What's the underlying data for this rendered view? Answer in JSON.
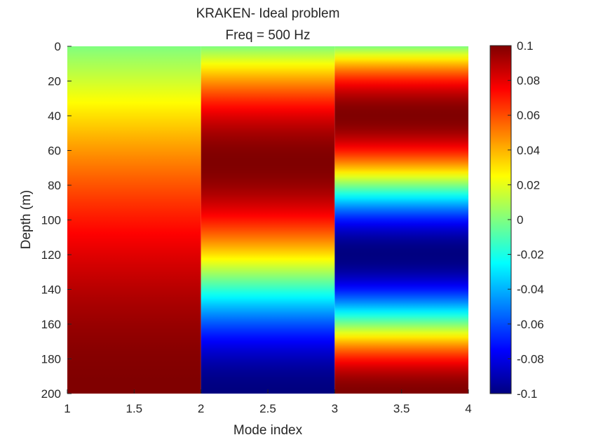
{
  "chart_data": {
    "type": "heatmap",
    "title": "KRAKEN- Ideal problem",
    "subtitle": "Freq = 500 Hz",
    "xlabel": "Mode index",
    "ylabel": "Depth (m)",
    "xlim": [
      1,
      4
    ],
    "ylim": [
      0,
      200
    ],
    "y_reversed": true,
    "xticks": [
      1,
      1.5,
      2,
      2.5,
      3,
      3.5,
      4
    ],
    "xtick_labels": [
      "1",
      "1.5",
      "2",
      "2.5",
      "3",
      "3.5",
      "4"
    ],
    "yticks": [
      0,
      20,
      40,
      60,
      80,
      100,
      120,
      140,
      160,
      180,
      200
    ],
    "ytick_labels": [
      "0",
      "20",
      "40",
      "60",
      "80",
      "100",
      "120",
      "140",
      "160",
      "180",
      "200"
    ],
    "colorbar": {
      "colormap": "jet",
      "clim": [
        -0.1,
        0.1
      ],
      "ticks": [
        0.1,
        0.08,
        0.06,
        0.04,
        0.02,
        0,
        -0.02,
        -0.04,
        -0.06,
        -0.08,
        -0.1
      ],
      "tick_labels": [
        "0.1",
        "0.08",
        "0.06",
        "0.04",
        "0.02",
        "0",
        "-0.02",
        "-0.04",
        "-0.06",
        "-0.08",
        "-0.1"
      ]
    },
    "modes": [
      {
        "mode": 1,
        "x_range": [
          1,
          2
        ],
        "amplitude": 0.1,
        "order": 1
      },
      {
        "mode": 2,
        "x_range": [
          2,
          3
        ],
        "amplitude": 0.1,
        "order": 2
      },
      {
        "mode": 3,
        "x_range": [
          3,
          4
        ],
        "amplitude": 0.1,
        "order": 3
      }
    ],
    "depth_max": 200,
    "grid": false
  }
}
